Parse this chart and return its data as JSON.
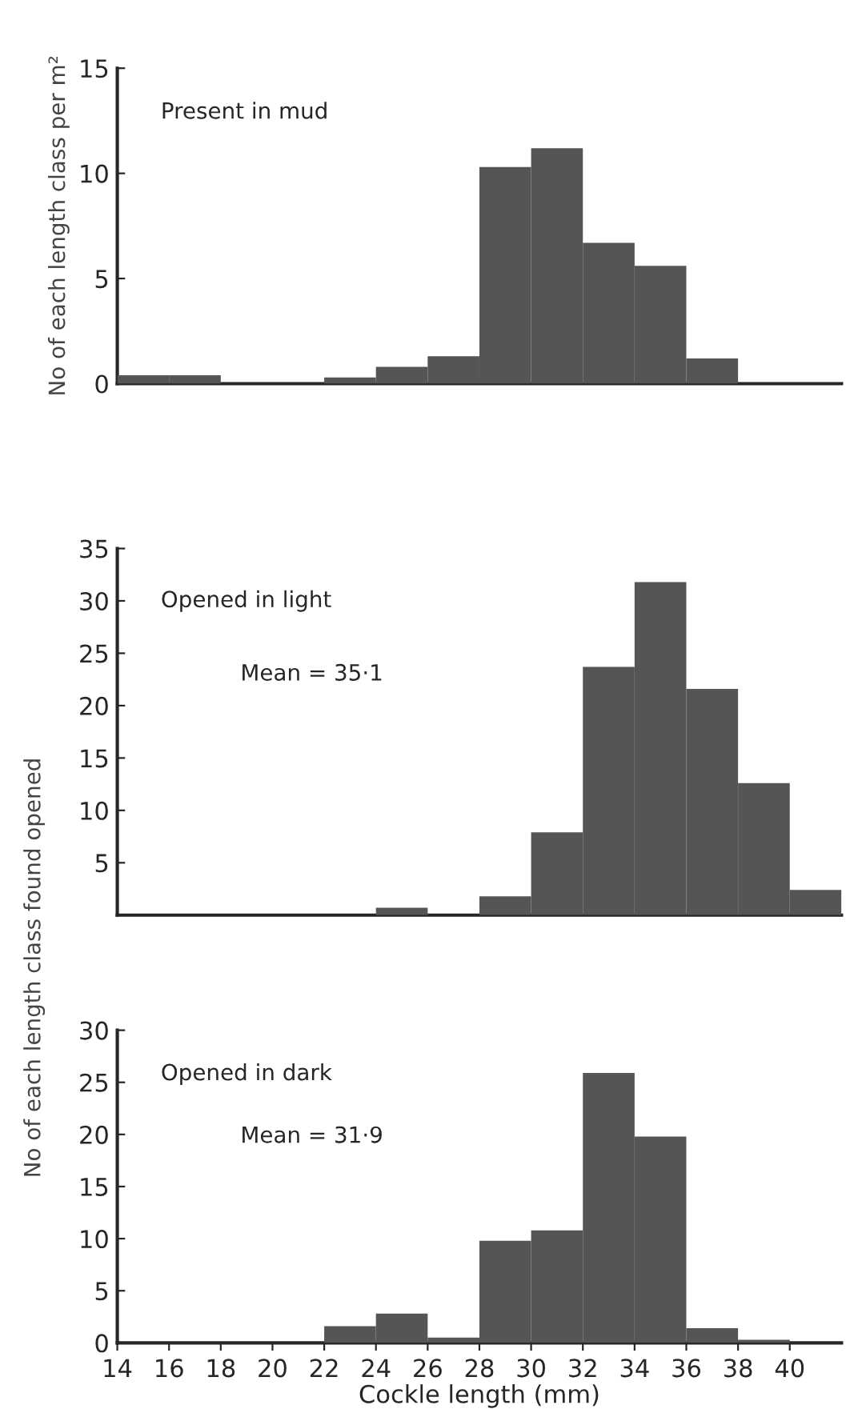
{
  "chart_data": [
    {
      "type": "histogram",
      "ylabel": "No of each length class per m²",
      "annotations": [
        "Present in mud"
      ],
      "bins": [
        14,
        16,
        18,
        20,
        22,
        24,
        26,
        28,
        30,
        32,
        34,
        36,
        38,
        40,
        42
      ],
      "values": [
        0.4,
        0.4,
        0,
        0,
        0.3,
        0.8,
        1.3,
        10.3,
        11.2,
        6.7,
        5.6,
        1.2,
        0,
        0
      ],
      "color": "#555555",
      "xlim": [
        14,
        42
      ],
      "ylim": [
        0,
        15
      ],
      "yticks": [
        0,
        5,
        10,
        15
      ],
      "tick_labels": "y"
    },
    {
      "type": "histogram",
      "annotations": [
        "Opened in light",
        "Mean = 35·1"
      ],
      "bins": [
        14,
        16,
        18,
        20,
        22,
        24,
        26,
        28,
        30,
        32,
        34,
        36,
        38,
        40,
        42
      ],
      "values": [
        0,
        0,
        0,
        0,
        0,
        0.7,
        0,
        1.8,
        7.9,
        23.7,
        31.8,
        21.6,
        12.6,
        2.4
      ],
      "color": "#555555",
      "xlim": [
        14,
        42
      ],
      "ylim": [
        0,
        35
      ],
      "yticks": [
        5,
        10,
        15,
        20,
        25,
        30,
        35
      ],
      "tick_labels": "y"
    },
    {
      "type": "histogram",
      "xlabel": "Cockle length (mm)",
      "ylabel": "No of each length class found opened",
      "annotations": [
        "Opened in dark",
        "Mean = 31·9"
      ],
      "bins": [
        14,
        16,
        18,
        20,
        22,
        24,
        26,
        28,
        30,
        32,
        34,
        36,
        38,
        40,
        42
      ],
      "values": [
        0,
        0,
        0,
        0,
        1.6,
        2.8,
        0.5,
        9.8,
        10.8,
        25.9,
        19.8,
        1.4,
        0.3,
        0
      ],
      "color": "#555555",
      "xlim": [
        14,
        42
      ],
      "ylim": [
        0,
        30
      ],
      "yticks": [
        0,
        5,
        10,
        15,
        20,
        25,
        30
      ],
      "xticks": [
        14,
        16,
        18,
        20,
        22,
        24,
        26,
        28,
        30,
        32,
        34,
        36,
        38,
        40
      ]
    }
  ]
}
